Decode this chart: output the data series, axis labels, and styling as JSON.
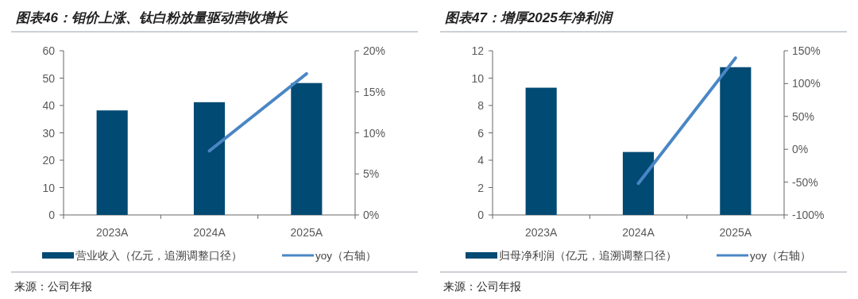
{
  "chart_data": [
    {
      "type": "bar",
      "title": "图表46：钼价上涨、钛白粉放量驱动营收增长",
      "categories": [
        "2023A",
        "2024A",
        "2025A"
      ],
      "series": [
        {
          "name": "营业收入（亿元，追溯调整口径）",
          "color": "#004a73",
          "values": [
            38.2,
            41.2,
            48.2
          ]
        },
        {
          "name": "yoy（右轴）",
          "type": "line",
          "axis": "y2",
          "color": "#4a86c5",
          "values": [
            null,
            7.8,
            17.2
          ]
        }
      ],
      "ylim": [
        0,
        60
      ],
      "yticks": [
        0,
        10,
        20,
        30,
        40,
        50,
        60
      ],
      "y2lim": [
        0,
        20
      ],
      "y2ticks": [
        {
          "value": 0,
          "label": "0%"
        },
        {
          "value": 5,
          "label": "5%"
        },
        {
          "value": 10,
          "label": "10%"
        },
        {
          "value": 15,
          "label": "15%"
        },
        {
          "value": 20,
          "label": "20%"
        }
      ],
      "legend": "bottom",
      "annotations": [
        "来源：公司年报"
      ]
    },
    {
      "type": "bar",
      "title": "图表47：增厚2025年净利润",
      "categories": [
        "2023A",
        "2024A",
        "2025A"
      ],
      "series": [
        {
          "name": "归母净利润（亿元，追溯调整口径）",
          "color": "#004a73",
          "values": [
            9.3,
            4.6,
            10.8
          ]
        },
        {
          "name": "yoy（右轴）",
          "type": "line",
          "axis": "y2",
          "color": "#4a86c5",
          "values": [
            null,
            -52,
            139
          ]
        }
      ],
      "ylim": [
        0,
        12
      ],
      "yticks": [
        0,
        2,
        4,
        6,
        8,
        10,
        12
      ],
      "y2lim": [
        -100,
        150
      ],
      "y2ticks": [
        {
          "value": -100,
          "label": "-100%"
        },
        {
          "value": -50,
          "label": "-50%"
        },
        {
          "value": 0,
          "label": "0%"
        },
        {
          "value": 50,
          "label": "50%"
        },
        {
          "value": 100,
          "label": "100%"
        },
        {
          "value": 150,
          "label": "150%"
        }
      ],
      "legend": "bottom",
      "annotations": [
        "来源：公司年报"
      ]
    }
  ]
}
